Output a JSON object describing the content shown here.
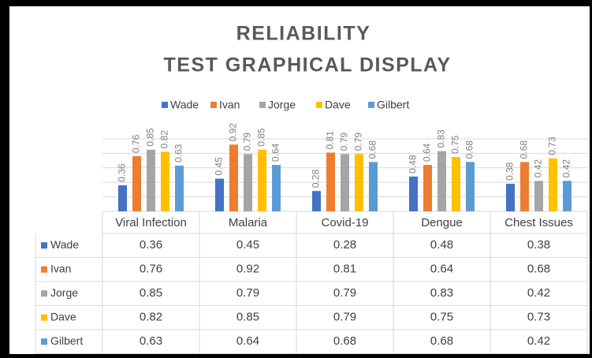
{
  "chart_data": {
    "type": "bar",
    "title": [
      "RELIABILITY",
      "TEST GRAPHICAL DISPLAY"
    ],
    "categories": [
      "Viral Infection",
      "Malaria",
      "Covid-19",
      "Dengue",
      "Chest Issues"
    ],
    "series": [
      {
        "name": "Wade",
        "color": "#4472c4",
        "values": [
          0.36,
          0.45,
          0.28,
          0.48,
          0.38
        ]
      },
      {
        "name": "Ivan",
        "color": "#ed7d31",
        "values": [
          0.76,
          0.92,
          0.81,
          0.64,
          0.68
        ]
      },
      {
        "name": "Jorge",
        "color": "#a5a5a5",
        "values": [
          0.85,
          0.79,
          0.79,
          0.83,
          0.42
        ]
      },
      {
        "name": "Dave",
        "color": "#ffc000",
        "values": [
          0.82,
          0.85,
          0.79,
          0.75,
          0.73
        ]
      },
      {
        "name": "Gilbert",
        "color": "#5b9bd5",
        "values": [
          0.63,
          0.64,
          0.68,
          0.68,
          0.42
        ]
      }
    ],
    "ylim": [
      0,
      1
    ],
    "yticks": [
      0,
      0.2,
      0.4,
      0.6,
      0.8,
      1
    ],
    "grid": true,
    "legend": "top",
    "data_table": true
  }
}
